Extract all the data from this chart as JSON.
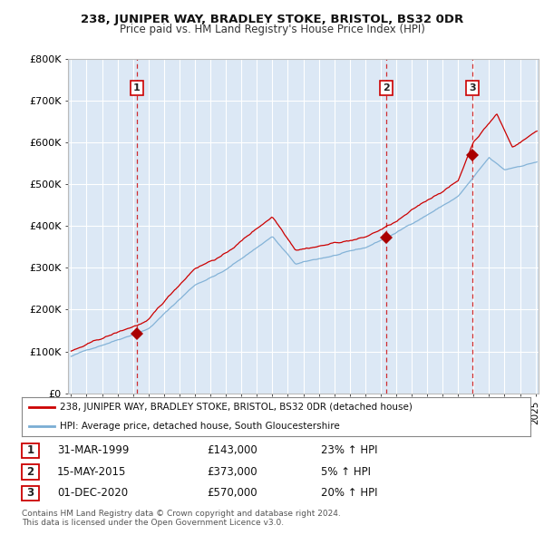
{
  "title": "238, JUNIPER WAY, BRADLEY STOKE, BRISTOL, BS32 0DR",
  "subtitle": "Price paid vs. HM Land Registry's House Price Index (HPI)",
  "xlim_start": 1995.0,
  "xlim_end": 2025.2,
  "ylim": [
    0,
    800000
  ],
  "yticks": [
    0,
    100000,
    200000,
    300000,
    400000,
    500000,
    600000,
    700000,
    800000
  ],
  "ytick_labels": [
    "£0",
    "£100K",
    "£200K",
    "£300K",
    "£400K",
    "£500K",
    "£600K",
    "£700K",
    "£800K"
  ],
  "background_color": "#ffffff",
  "plot_bg_color": "#dce8f5",
  "grid_color": "#ffffff",
  "sale_points": [
    {
      "year": 1999.25,
      "price": 143000,
      "label": "1"
    },
    {
      "year": 2015.37,
      "price": 373000,
      "label": "2"
    },
    {
      "year": 2020.92,
      "price": 570000,
      "label": "3"
    }
  ],
  "sale_table": [
    {
      "num": "1",
      "date": "31-MAR-1999",
      "price": "£143,000",
      "hpi": "23% ↑ HPI"
    },
    {
      "num": "2",
      "date": "15-MAY-2015",
      "price": "£373,000",
      "hpi": "5% ↑ HPI"
    },
    {
      "num": "3",
      "date": "01-DEC-2020",
      "price": "£570,000",
      "hpi": "20% ↑ HPI"
    }
  ],
  "legend_line1": "238, JUNIPER WAY, BRADLEY STOKE, BRISTOL, BS32 0DR (detached house)",
  "legend_line2": "HPI: Average price, detached house, South Gloucestershire",
  "footer1": "Contains HM Land Registry data © Crown copyright and database right 2024.",
  "footer2": "This data is licensed under the Open Government Licence v3.0.",
  "red_color": "#cc0000",
  "blue_color": "#7aadd4",
  "vline_color": "#cc0000",
  "marker_color": "#aa0000"
}
